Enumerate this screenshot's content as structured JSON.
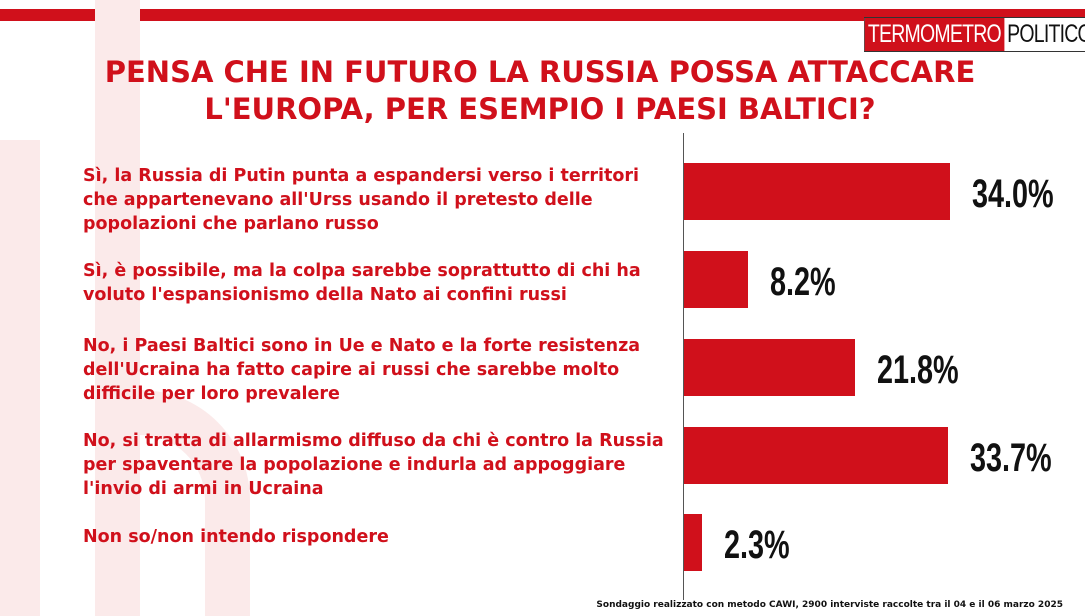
{
  "brand": {
    "part1": "TERMOMETRO",
    "part2": "POLITICO"
  },
  "chart_data": {
    "type": "bar",
    "orientation": "horizontal",
    "title": "PENSA CHE IN FUTURO LA RUSSIA POSSA ATTACCARE L'EUROPA, PER ESEMPIO I PAESI BALTICI?",
    "categories": [
      "Sì, la Russia di Putin punta a espandersi verso i territori che appartenevano all'Urss usando il pretesto delle popolazioni che parlano russo",
      "Sì, è possibile, ma la colpa sarebbe soprattutto di chi ha voluto l'espansionismo della Nato ai confini russi",
      "No, i Paesi Baltici sono in Ue e Nato e la forte resistenza dell'Ucraina ha fatto capire ai russi che sarebbe molto difficile per loro prevalere",
      "No, si tratta di allarmismo diffuso da chi è contro la Russia per spaventare la popolazione e indurla ad appoggiare l'invio di armi in Ucraina",
      "Non so/non intendo rispondere"
    ],
    "values": [
      34.0,
      8.2,
      21.8,
      33.7,
      2.3
    ],
    "value_labels": [
      "34.0%",
      "8.2%",
      "21.8%",
      "33.7%",
      "2.3%"
    ],
    "bar_color": "#d0101b",
    "xlim": [
      0,
      34
    ]
  },
  "footnote": "Sondaggio realizzato con metodo CAWI, 2900 interviste raccolte tra il 04 e il 06  marzo 2025"
}
